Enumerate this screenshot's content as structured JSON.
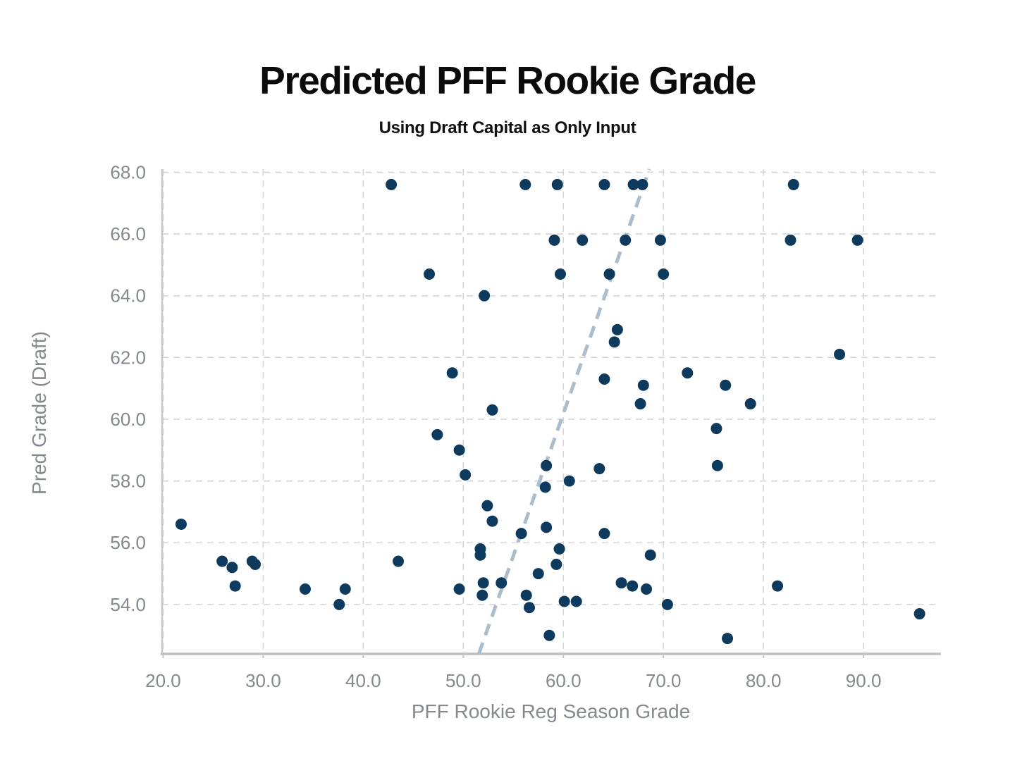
{
  "header": {
    "title": "Predicted PFF Rookie Grade",
    "subtitle": "Using Draft Capital as Only Input"
  },
  "chart_data": {
    "type": "scatter",
    "title": "Predicted PFF Rookie Grade",
    "subtitle": "Using Draft Capital as Only Input",
    "xlabel": "PFF Rookie Reg Season Grade",
    "ylabel": "Pred Grade (Draft)",
    "xlim": [
      19.9,
      97.6
    ],
    "ylim": [
      52.4,
      68.1
    ],
    "x_ticks": [
      20,
      30,
      40,
      50,
      60,
      70,
      80,
      90
    ],
    "x_tick_labels": [
      "20.0",
      "30.0",
      "40.0",
      "50.0",
      "60.0",
      "70.0",
      "80.0",
      "90.0"
    ],
    "y_ticks": [
      54,
      56,
      58,
      60,
      62,
      64,
      66,
      68
    ],
    "y_tick_labels": [
      "54.0",
      "56.0",
      "58.0",
      "60.0",
      "62.0",
      "64.0",
      "66.0",
      "68.0"
    ],
    "grid": true,
    "legend": "none",
    "colors": {
      "point": "#0e3a5e",
      "trend_line": "#abbcca",
      "gridline": "#d3d5d8",
      "axis_line": "#c3c6ca",
      "bottom_axis_line": "#bcbfc2",
      "tick_label": "#84888f",
      "title_text": "#0b0b0b"
    },
    "trend_line": {
      "style": "dashed",
      "x1": 51.55,
      "y1": 52.4,
      "x2": 68.6,
      "y2": 68.1
    },
    "points": [
      [
        42.8,
        67.6
      ],
      [
        56.2,
        67.6
      ],
      [
        59.4,
        67.6
      ],
      [
        64.1,
        67.6
      ],
      [
        67.0,
        67.6
      ],
      [
        67.9,
        67.6
      ],
      [
        83.0,
        67.6
      ],
      [
        59.1,
        65.8
      ],
      [
        61.9,
        65.8
      ],
      [
        66.2,
        65.8
      ],
      [
        69.7,
        65.8
      ],
      [
        82.7,
        65.8
      ],
      [
        89.4,
        65.8
      ],
      [
        46.6,
        64.7
      ],
      [
        59.7,
        64.7
      ],
      [
        64.6,
        64.7
      ],
      [
        70.0,
        64.7
      ],
      [
        52.1,
        64.0
      ],
      [
        65.4,
        62.9
      ],
      [
        65.1,
        62.5
      ],
      [
        87.6,
        62.1
      ],
      [
        48.9,
        61.5
      ],
      [
        72.4,
        61.5
      ],
      [
        64.1,
        61.3
      ],
      [
        68.0,
        61.1
      ],
      [
        76.2,
        61.1
      ],
      [
        67.7,
        60.5
      ],
      [
        78.7,
        60.5
      ],
      [
        52.9,
        60.3
      ],
      [
        75.3,
        59.7
      ],
      [
        47.4,
        59.5
      ],
      [
        49.6,
        59.0
      ],
      [
        58.3,
        58.5
      ],
      [
        75.4,
        58.5
      ],
      [
        63.6,
        58.4
      ],
      [
        50.2,
        58.2
      ],
      [
        60.6,
        58.0
      ],
      [
        58.2,
        57.8
      ],
      [
        52.4,
        57.2
      ],
      [
        52.9,
        56.7
      ],
      [
        21.8,
        56.6
      ],
      [
        58.3,
        56.5
      ],
      [
        55.8,
        56.3
      ],
      [
        64.1,
        56.3
      ],
      [
        51.7,
        55.8
      ],
      [
        51.7,
        55.6
      ],
      [
        59.6,
        55.8
      ],
      [
        59.3,
        55.3
      ],
      [
        25.9,
        55.4
      ],
      [
        28.9,
        55.4
      ],
      [
        29.2,
        55.3
      ],
      [
        26.9,
        55.2
      ],
      [
        43.5,
        55.4
      ],
      [
        68.7,
        55.6
      ],
      [
        57.5,
        55.0
      ],
      [
        27.2,
        54.6
      ],
      [
        34.2,
        54.5
      ],
      [
        38.2,
        54.5
      ],
      [
        49.6,
        54.5
      ],
      [
        52.0,
        54.7
      ],
      [
        53.8,
        54.7
      ],
      [
        51.9,
        54.3
      ],
      [
        56.3,
        54.3
      ],
      [
        37.6,
        54.0
      ],
      [
        56.6,
        53.9
      ],
      [
        65.8,
        54.7
      ],
      [
        66.9,
        54.6
      ],
      [
        68.3,
        54.5
      ],
      [
        60.1,
        54.1
      ],
      [
        61.3,
        54.1
      ],
      [
        70.4,
        54.0
      ],
      [
        81.4,
        54.6
      ],
      [
        58.6,
        53.0
      ],
      [
        76.4,
        52.9
      ],
      [
        95.6,
        53.7
      ]
    ]
  }
}
